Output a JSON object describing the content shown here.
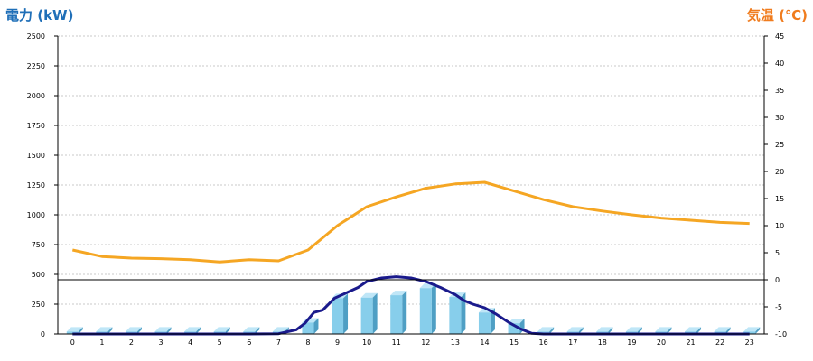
{
  "chart_data": {
    "type": "bar+line",
    "ylabel_left": "電力 (kW)",
    "ylabel_right": "気温 (℃)",
    "x": [
      0,
      1,
      2,
      3,
      4,
      5,
      6,
      7,
      8,
      9,
      10,
      11,
      12,
      13,
      14,
      15,
      16,
      17,
      18,
      19,
      20,
      21,
      22,
      23
    ],
    "ylim_left": [
      0,
      2500
    ],
    "ylim_right": [
      -10,
      45
    ],
    "yticks_left": [
      0,
      250,
      500,
      750,
      1000,
      1250,
      1500,
      1750,
      2000,
      2250,
      2500
    ],
    "yticks_right": [
      -10,
      -5,
      0,
      5,
      10,
      15,
      20,
      25,
      30,
      35,
      40,
      45
    ],
    "grid": true,
    "series": [
      {
        "kind": "bar",
        "axis": "left",
        "color": "#87ceeb",
        "values": [
          20,
          20,
          20,
          20,
          20,
          20,
          20,
          20,
          95,
          300,
          305,
          325,
          385,
          310,
          180,
          90,
          20,
          20,
          20,
          20,
          20,
          20,
          20,
          20
        ]
      },
      {
        "kind": "line",
        "axis": "left",
        "color": "#1a1a8c",
        "x": [
          0,
          1,
          2,
          3,
          4,
          5,
          6,
          7,
          7.6,
          7.9,
          8.2,
          8.5,
          8.9,
          9.3,
          9.7,
          10,
          10.5,
          11,
          11.5,
          12,
          12.5,
          13,
          13.3,
          13.6,
          14,
          14.4,
          14.8,
          15.2,
          15.6,
          16,
          17,
          18,
          19,
          20,
          21,
          22,
          23
        ],
        "values": [
          0,
          0,
          0,
          0,
          0,
          0,
          0,
          2,
          35,
          90,
          180,
          200,
          300,
          345,
          390,
          440,
          470,
          480,
          470,
          440,
          390,
          330,
          280,
          250,
          220,
          165,
          100,
          45,
          5,
          0,
          0,
          0,
          0,
          0,
          0,
          0,
          0
        ]
      },
      {
        "kind": "line",
        "axis": "right",
        "color": "#f5a623",
        "values": [
          5.5,
          4.3,
          4.0,
          3.9,
          3.7,
          3.3,
          3.7,
          3.5,
          5.5,
          10,
          13.5,
          15.3,
          16.9,
          17.7,
          18,
          16.4,
          14.8,
          13.5,
          12.7,
          12,
          11.4,
          11,
          10.6,
          10.4
        ]
      }
    ]
  }
}
